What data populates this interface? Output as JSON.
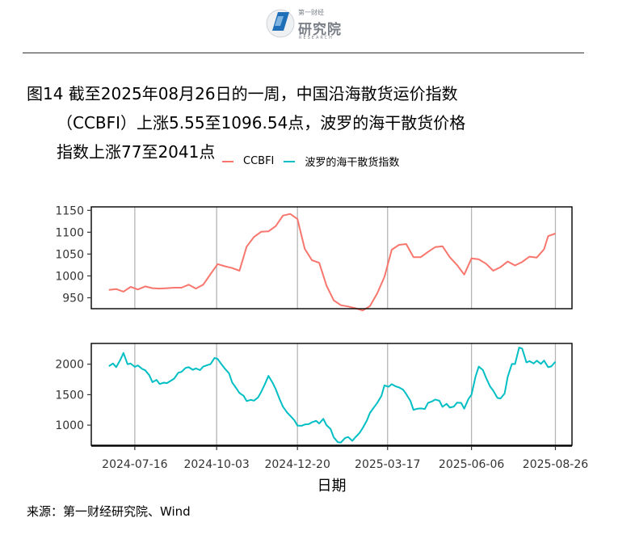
{
  "header": {
    "logo_cn": "研究院",
    "logo_top": "第一财经",
    "logo_en": "RESEARCH"
  },
  "figure": {
    "title_l1": "图14  截至2025年08月26日的一周，中国沿海散货运价指数",
    "title_l2": "（CCBFI）上涨5.55至1096.54点，波罗的海干散货价格",
    "title_l3": "指数上涨77至2041点",
    "source": "来源：第一财经研究院、Wind"
  },
  "chart_data": {
    "type": "line",
    "xlabel": "日期",
    "x_ticks": [
      "2024-07-16",
      "2024-10-03",
      "2024-12-20",
      "2025-03-17",
      "2025-06-06",
      "2025-08-26"
    ],
    "colors": {
      "CCBFI": "#F8766D",
      "BDI": "#00BFC4"
    },
    "legend_position": "top",
    "grid": "vertical major lines only",
    "panels": [
      {
        "series_name": "CCBFI",
        "yticks": [
          950,
          1000,
          1050,
          1100,
          1150
        ],
        "ylim": [
          925,
          1158
        ],
        "points": [
          [
            "2024-06-21",
            968
          ],
          [
            "2024-06-28",
            970
          ],
          [
            "2024-07-05",
            964
          ],
          [
            "2024-07-12",
            975
          ],
          [
            "2024-07-19",
            969
          ],
          [
            "2024-07-26",
            976
          ],
          [
            "2024-08-02",
            972
          ],
          [
            "2024-08-09",
            971
          ],
          [
            "2024-08-16",
            972
          ],
          [
            "2024-08-23",
            973
          ],
          [
            "2024-08-30",
            973
          ],
          [
            "2024-09-06",
            980
          ],
          [
            "2024-09-13",
            971
          ],
          [
            "2024-09-20",
            980
          ],
          [
            "2024-09-27",
            1004
          ],
          [
            "2024-10-04",
            1027
          ],
          [
            "2024-10-11",
            1022
          ],
          [
            "2024-10-18",
            1018
          ],
          [
            "2024-10-25",
            1012
          ],
          [
            "2024-11-01",
            1067
          ],
          [
            "2024-11-08",
            1089
          ],
          [
            "2024-11-15",
            1101
          ],
          [
            "2024-11-22",
            1102
          ],
          [
            "2024-11-29",
            1114
          ],
          [
            "2024-12-06",
            1138
          ],
          [
            "2024-12-13",
            1142
          ],
          [
            "2024-12-20",
            1130
          ],
          [
            "2024-12-27",
            1062
          ],
          [
            "2025-01-03",
            1036
          ],
          [
            "2025-01-10",
            1030
          ],
          [
            "2025-01-17",
            978
          ],
          [
            "2025-01-24",
            944
          ],
          [
            "2025-01-31",
            933
          ],
          [
            "2025-02-07",
            930
          ],
          [
            "2025-02-14",
            926
          ],
          [
            "2025-02-21",
            921
          ],
          [
            "2025-02-28",
            931
          ],
          [
            "2025-03-07",
            960
          ],
          [
            "2025-03-14",
            998
          ],
          [
            "2025-03-21",
            1060
          ],
          [
            "2025-03-28",
            1071
          ],
          [
            "2025-04-04",
            1073
          ],
          [
            "2025-04-11",
            1043
          ],
          [
            "2025-04-18",
            1043
          ],
          [
            "2025-04-25",
            1055
          ],
          [
            "2025-05-02",
            1066
          ],
          [
            "2025-05-09",
            1068
          ],
          [
            "2025-05-16",
            1043
          ],
          [
            "2025-05-23",
            1025
          ],
          [
            "2025-05-30",
            1003
          ],
          [
            "2025-06-06",
            1040
          ],
          [
            "2025-06-13",
            1038
          ],
          [
            "2025-06-20",
            1028
          ],
          [
            "2025-06-27",
            1012
          ],
          [
            "2025-07-04",
            1020
          ],
          [
            "2025-07-11",
            1033
          ],
          [
            "2025-07-18",
            1024
          ],
          [
            "2025-07-25",
            1032
          ],
          [
            "2025-08-01",
            1044
          ],
          [
            "2025-08-08",
            1042
          ],
          [
            "2025-08-15",
            1061
          ],
          [
            "2025-08-19",
            1091
          ],
          [
            "2025-08-26",
            1097
          ]
        ]
      },
      {
        "series_name": "波罗的海干散货指数",
        "yticks": [
          1000,
          1500,
          2000
        ],
        "ylim": [
          670,
          2340
        ],
        "points": [
          [
            "2024-06-21",
            1967
          ],
          [
            "2024-06-25",
            2011
          ],
          [
            "2024-06-28",
            1950
          ],
          [
            "2024-07-02",
            2070
          ],
          [
            "2024-07-05",
            2183
          ],
          [
            "2024-07-09",
            2000
          ],
          [
            "2024-07-12",
            2010
          ],
          [
            "2024-07-16",
            1956
          ],
          [
            "2024-07-19",
            1980
          ],
          [
            "2024-07-23",
            1924
          ],
          [
            "2024-07-26",
            1900
          ],
          [
            "2024-07-30",
            1819
          ],
          [
            "2024-08-02",
            1705
          ],
          [
            "2024-08-06",
            1742
          ],
          [
            "2024-08-09",
            1675
          ],
          [
            "2024-08-13",
            1697
          ],
          [
            "2024-08-16",
            1689
          ],
          [
            "2024-08-20",
            1730
          ],
          [
            "2024-08-23",
            1763
          ],
          [
            "2024-08-27",
            1860
          ],
          [
            "2024-08-30",
            1873
          ],
          [
            "2024-09-03",
            1938
          ],
          [
            "2024-09-06",
            1950
          ],
          [
            "2024-09-10",
            1908
          ],
          [
            "2024-09-13",
            1930
          ],
          [
            "2024-09-17",
            1903
          ],
          [
            "2024-09-20",
            1960
          ],
          [
            "2024-09-24",
            1985
          ],
          [
            "2024-09-27",
            2000
          ],
          [
            "2024-10-01",
            2103
          ],
          [
            "2024-10-04",
            2085
          ],
          [
            "2024-10-08",
            1990
          ],
          [
            "2024-10-11",
            1925
          ],
          [
            "2024-10-15",
            1851
          ],
          [
            "2024-10-18",
            1700
          ],
          [
            "2024-10-22",
            1604
          ],
          [
            "2024-10-25",
            1527
          ],
          [
            "2024-10-29",
            1481
          ],
          [
            "2024-11-01",
            1395
          ],
          [
            "2024-11-05",
            1415
          ],
          [
            "2024-11-08",
            1402
          ],
          [
            "2024-11-12",
            1455
          ],
          [
            "2024-11-15",
            1545
          ],
          [
            "2024-11-19",
            1688
          ],
          [
            "2024-11-22",
            1808
          ],
          [
            "2024-11-26",
            1696
          ],
          [
            "2024-11-29",
            1590
          ],
          [
            "2024-12-03",
            1417
          ],
          [
            "2024-12-06",
            1303
          ],
          [
            "2024-12-10",
            1207
          ],
          [
            "2024-12-13",
            1155
          ],
          [
            "2024-12-17",
            1081
          ],
          [
            "2024-12-20",
            993
          ],
          [
            "2024-12-24",
            990
          ],
          [
            "2024-12-27",
            1011
          ],
          [
            "2024-12-31",
            1017
          ],
          [
            "2025-01-03",
            1047
          ],
          [
            "2025-01-07",
            1070
          ],
          [
            "2025-01-10",
            1026
          ],
          [
            "2025-01-14",
            1104
          ],
          [
            "2025-01-17",
            1000
          ],
          [
            "2025-01-21",
            936
          ],
          [
            "2025-01-24",
            800
          ],
          [
            "2025-01-28",
            721
          ],
          [
            "2025-01-31",
            715
          ],
          [
            "2025-02-04",
            790
          ],
          [
            "2025-02-07",
            805
          ],
          [
            "2025-02-11",
            743
          ],
          [
            "2025-02-14",
            803
          ],
          [
            "2025-02-18",
            873
          ],
          [
            "2025-02-21",
            954
          ],
          [
            "2025-02-25",
            1075
          ],
          [
            "2025-02-28",
            1200
          ],
          [
            "2025-03-04",
            1296
          ],
          [
            "2025-03-07",
            1363
          ],
          [
            "2025-03-11",
            1479
          ],
          [
            "2025-03-14",
            1652
          ],
          [
            "2025-03-18",
            1630
          ],
          [
            "2025-03-21",
            1672
          ],
          [
            "2025-03-25",
            1635
          ],
          [
            "2025-03-28",
            1619
          ],
          [
            "2025-04-01",
            1580
          ],
          [
            "2025-04-04",
            1510
          ],
          [
            "2025-04-08",
            1398
          ],
          [
            "2025-04-11",
            1250
          ],
          [
            "2025-04-15",
            1270
          ],
          [
            "2025-04-18",
            1274
          ],
          [
            "2025-04-22",
            1265
          ],
          [
            "2025-04-25",
            1365
          ],
          [
            "2025-04-29",
            1390
          ],
          [
            "2025-05-02",
            1420
          ],
          [
            "2025-05-06",
            1400
          ],
          [
            "2025-05-09",
            1300
          ],
          [
            "2025-05-13",
            1350
          ],
          [
            "2025-05-16",
            1288
          ],
          [
            "2025-05-20",
            1305
          ],
          [
            "2025-05-23",
            1368
          ],
          [
            "2025-05-27",
            1364
          ],
          [
            "2025-05-30",
            1270
          ],
          [
            "2025-06-03",
            1428
          ],
          [
            "2025-06-06",
            1500
          ],
          [
            "2025-06-10",
            1800
          ],
          [
            "2025-06-13",
            1960
          ],
          [
            "2025-06-17",
            1904
          ],
          [
            "2025-06-20",
            1778
          ],
          [
            "2025-06-24",
            1634
          ],
          [
            "2025-06-27",
            1566
          ],
          [
            "2025-07-01",
            1447
          ],
          [
            "2025-07-04",
            1438
          ],
          [
            "2025-07-08",
            1518
          ],
          [
            "2025-07-11",
            1795
          ],
          [
            "2025-07-15",
            2004
          ],
          [
            "2025-07-18",
            2002
          ],
          [
            "2025-07-22",
            2273
          ],
          [
            "2025-07-25",
            2254
          ],
          [
            "2025-07-29",
            2030
          ],
          [
            "2025-08-01",
            2050
          ],
          [
            "2025-08-05",
            2011
          ],
          [
            "2025-08-08",
            2058
          ],
          [
            "2025-08-12",
            2005
          ],
          [
            "2025-08-15",
            2059
          ],
          [
            "2025-08-19",
            1950
          ],
          [
            "2025-08-22",
            1964
          ],
          [
            "2025-08-26",
            2041
          ]
        ]
      }
    ],
    "legend": [
      "CCBFI",
      "波罗的海干散货指数"
    ]
  }
}
